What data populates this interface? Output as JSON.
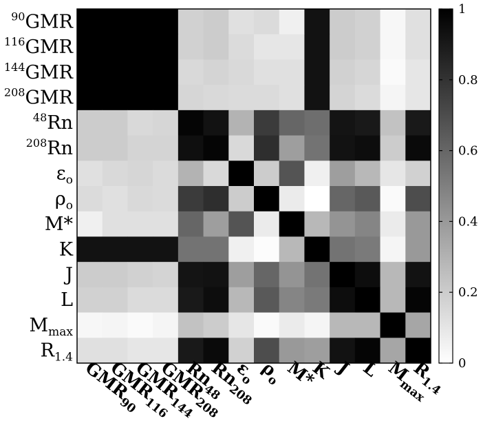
{
  "chart_data": {
    "type": "heatmap",
    "title": "",
    "row_labels": [
      {
        "sup": "90",
        "base": "GMR",
        "sub": ""
      },
      {
        "sup": "116",
        "base": "GMR",
        "sub": ""
      },
      {
        "sup": "144",
        "base": "GMR",
        "sub": ""
      },
      {
        "sup": "208",
        "base": "GMR",
        "sub": ""
      },
      {
        "sup": "48",
        "base": "Rn",
        "sub": ""
      },
      {
        "sup": "208",
        "base": "Rn",
        "sub": ""
      },
      {
        "sup": "",
        "base": "ε",
        "sub": "o"
      },
      {
        "sup": "",
        "base": "ρ",
        "sub": "o"
      },
      {
        "sup": "",
        "base": "M*",
        "sub": ""
      },
      {
        "sup": "",
        "base": "K",
        "sub": ""
      },
      {
        "sup": "",
        "base": "J",
        "sub": ""
      },
      {
        "sup": "",
        "base": "L",
        "sub": ""
      },
      {
        "sup": "",
        "base": "M",
        "sub": "max"
      },
      {
        "sup": "",
        "base": "R",
        "sub": "1.4"
      }
    ],
    "col_labels": [
      {
        "base": "GMR",
        "sub": "90"
      },
      {
        "base": "GMR",
        "sub": "116"
      },
      {
        "base": "GMR",
        "sub": "144"
      },
      {
        "base": "GMR",
        "sub": "208"
      },
      {
        "base": "Rn",
        "sub": "48"
      },
      {
        "base": "Rn",
        "sub": "208"
      },
      {
        "base": "ε",
        "sub": "o"
      },
      {
        "base": "ρ",
        "sub": "o"
      },
      {
        "base": "M*",
        "sub": ""
      },
      {
        "base": "K",
        "sub": ""
      },
      {
        "base": "J",
        "sub": ""
      },
      {
        "base": "L",
        "sub": ""
      },
      {
        "base": "M",
        "sub": "max"
      },
      {
        "base": "R",
        "sub": "1.4"
      }
    ],
    "values": [
      [
        1.0,
        1.0,
        1.0,
        1.0,
        0.18,
        0.2,
        0.12,
        0.14,
        0.06,
        0.93,
        0.2,
        0.18,
        0.03,
        0.12
      ],
      [
        1.0,
        1.0,
        1.0,
        1.0,
        0.18,
        0.2,
        0.14,
        0.1,
        0.1,
        0.93,
        0.2,
        0.18,
        0.03,
        0.12
      ],
      [
        1.0,
        1.0,
        1.0,
        1.0,
        0.15,
        0.17,
        0.15,
        0.12,
        0.12,
        0.93,
        0.18,
        0.16,
        0.02,
        0.1
      ],
      [
        1.0,
        1.0,
        1.0,
        1.0,
        0.16,
        0.15,
        0.14,
        0.14,
        0.12,
        0.93,
        0.17,
        0.14,
        0.04,
        0.1
      ],
      [
        0.2,
        0.2,
        0.15,
        0.16,
        0.98,
        0.93,
        0.3,
        0.77,
        0.6,
        0.57,
        0.92,
        0.9,
        0.24,
        0.9
      ],
      [
        0.2,
        0.2,
        0.17,
        0.17,
        0.94,
        0.98,
        0.15,
        0.82,
        0.38,
        0.55,
        0.93,
        0.95,
        0.2,
        0.96
      ],
      [
        0.12,
        0.15,
        0.16,
        0.14,
        0.3,
        0.15,
        1.0,
        0.2,
        0.67,
        0.06,
        0.38,
        0.28,
        0.1,
        0.18
      ],
      [
        0.14,
        0.12,
        0.15,
        0.14,
        0.77,
        0.82,
        0.2,
        1.0,
        0.08,
        0.0,
        0.6,
        0.65,
        0.02,
        0.7
      ],
      [
        0.06,
        0.12,
        0.12,
        0.12,
        0.6,
        0.38,
        0.67,
        0.08,
        1.0,
        0.28,
        0.42,
        0.48,
        0.08,
        0.4
      ],
      [
        0.93,
        0.93,
        0.93,
        0.93,
        0.55,
        0.55,
        0.06,
        0.01,
        0.28,
        1.0,
        0.55,
        0.52,
        0.04,
        0.4
      ],
      [
        0.2,
        0.2,
        0.18,
        0.17,
        0.92,
        0.93,
        0.38,
        0.6,
        0.42,
        0.55,
        1.0,
        0.95,
        0.28,
        0.93
      ],
      [
        0.18,
        0.18,
        0.14,
        0.14,
        0.9,
        0.95,
        0.28,
        0.65,
        0.48,
        0.52,
        0.95,
        1.0,
        0.28,
        0.98
      ],
      [
        0.03,
        0.04,
        0.02,
        0.04,
        0.24,
        0.2,
        0.1,
        0.02,
        0.08,
        0.04,
        0.28,
        0.28,
        1.0,
        0.35
      ],
      [
        0.12,
        0.12,
        0.1,
        0.1,
        0.9,
        0.96,
        0.18,
        0.7,
        0.4,
        0.38,
        0.93,
        0.98,
        0.35,
        1.0
      ]
    ],
    "colorbar": {
      "range": [
        0,
        1
      ],
      "ticks": [
        0,
        0.2,
        0.4,
        0.6,
        0.8,
        1
      ],
      "tick_labels": [
        "0",
        "0.2",
        "0.4",
        "0.6",
        "0.8",
        "1"
      ],
      "low_color": "#ffffff",
      "high_color": "#000000"
    },
    "xlabel": "",
    "ylabel": ""
  }
}
